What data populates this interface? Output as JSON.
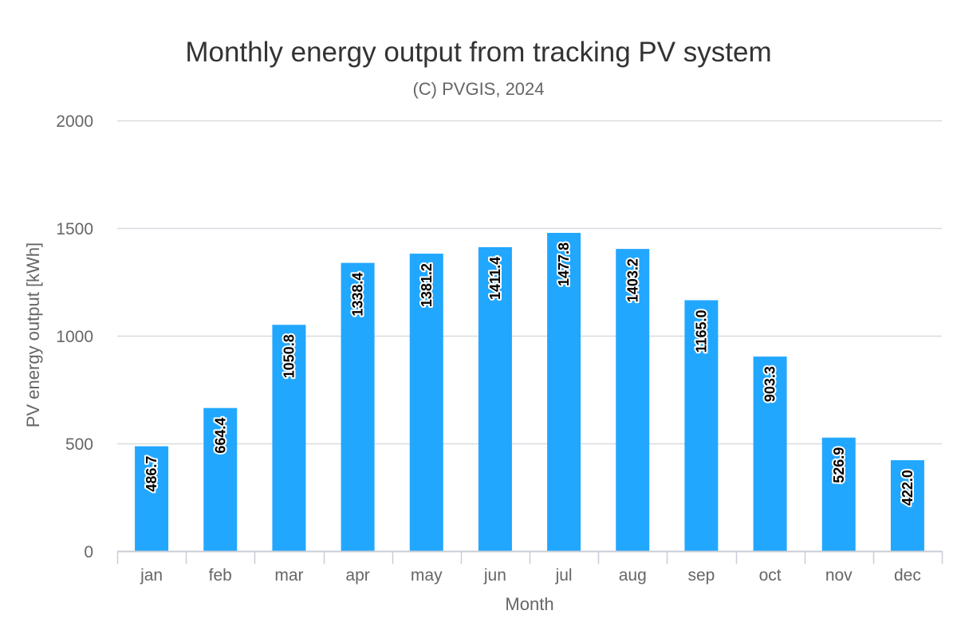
{
  "chart_data": {
    "type": "bar",
    "title": "Monthly energy output from tracking PV system",
    "subtitle": "(C) PVGIS, 2024",
    "xlabel": "Month",
    "ylabel": "PV energy output [kWh]",
    "categories": [
      "jan",
      "feb",
      "mar",
      "apr",
      "may",
      "jun",
      "jul",
      "aug",
      "sep",
      "oct",
      "nov",
      "dec"
    ],
    "values": [
      486.7,
      664.4,
      1050.8,
      1338.4,
      1381.2,
      1411.4,
      1477.8,
      1403.2,
      1165.0,
      903.3,
      526.9,
      422.0
    ],
    "value_labels": [
      "486.7",
      "664.4",
      "1050.8",
      "1338.4",
      "1381.2",
      "1411.4",
      "1477.8",
      "1403.2",
      "1165.0",
      "903.3",
      "526.9",
      "422.0"
    ],
    "ylim": [
      0,
      2000
    ],
    "yticks": [
      "0",
      "500",
      "1000",
      "1500",
      "2000"
    ],
    "ytick_values": [
      0,
      500,
      1000,
      1500,
      2000
    ],
    "grid": true,
    "legend": "none",
    "bar_color": "#22a7ff",
    "grid_color": "#d8dbe0",
    "axis_color": "#c8cdd6"
  }
}
